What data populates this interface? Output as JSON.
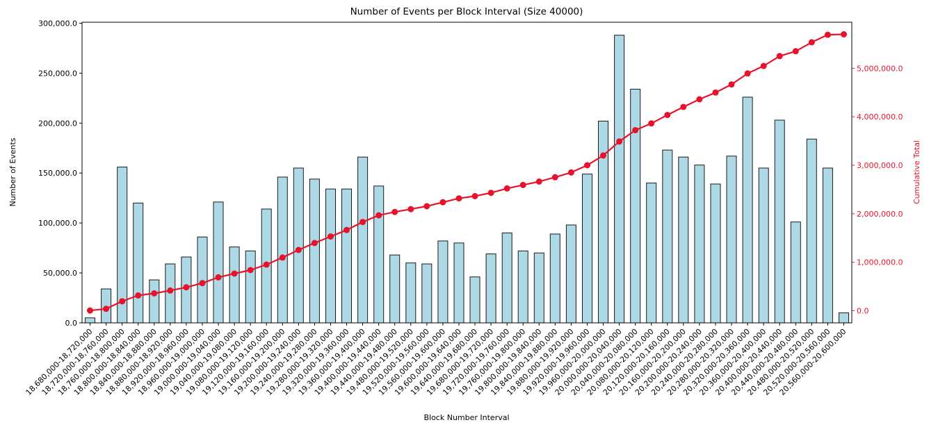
{
  "chart_data": {
    "type": "bar",
    "title": "Number of Events per Block Interval (Size 40000)",
    "xlabel": "Block Number Interval",
    "ylabel_left": "Number of Events",
    "ylabel_right": "Cumulative Total",
    "grid": false,
    "legend": "none",
    "categories": [
      "18,680,000-18,720,000",
      "18,720,000-18,760,000",
      "18,760,000-18,800,000",
      "18,800,000-18,840,000",
      "18,840,000-18,880,000",
      "18,880,000-18,920,000",
      "18,920,000-18,960,000",
      "18,960,000-19,000,000",
      "19,000,000-19,040,000",
      "19,040,000-19,080,000",
      "19,080,000-19,120,000",
      "19,120,000-19,160,000",
      "19,160,000-19,200,000",
      "19,200,000-19,240,000",
      "19,240,000-19,280,000",
      "19,280,000-19,320,000",
      "19,320,000-19,360,000",
      "19,360,000-19,400,000",
      "19,400,000-19,440,000",
      "19,440,000-19,480,000",
      "19,480,000-19,520,000",
      "19,520,000-19,560,000",
      "19,560,000-19,600,000",
      "19,600,000-19,640,000",
      "19,640,000-19,680,000",
      "19,680,000-19,720,000",
      "19,720,000-19,760,000",
      "19,760,000-19,800,000",
      "19,800,000-19,840,000",
      "19,840,000-19,880,000",
      "19,880,000-19,920,000",
      "19,920,000-19,960,000",
      "19,960,000-20,000,000",
      "20,000,000-20,040,000",
      "20,040,000-20,080,000",
      "20,080,000-20,120,000",
      "20,120,000-20,160,000",
      "20,160,000-20,200,000",
      "20,200,000-20,240,000",
      "20,240,000-20,280,000",
      "20,280,000-20,320,000",
      "20,320,000-20,360,000",
      "20,360,000-20,400,000",
      "20,400,000-20,440,000",
      "20,440,000-20,480,000",
      "20,480,000-20,520,000",
      "20,520,000-20,560,000",
      "20,560,000-20,600,000"
    ],
    "series": [
      {
        "name": "Number of Events",
        "type": "bar",
        "axis": "left",
        "color": "#add8e6",
        "edge_color": "#1a1a1a",
        "values": [
          5000,
          34000,
          156000,
          120000,
          43000,
          59000,
          66000,
          86000,
          121000,
          76000,
          72000,
          114000,
          146000,
          155000,
          144000,
          134000,
          134000,
          166000,
          137000,
          68000,
          60000,
          59000,
          82000,
          80000,
          46000,
          69000,
          90000,
          72000,
          70000,
          89000,
          98000,
          149000,
          202000,
          288000,
          234000,
          140000,
          173000,
          166000,
          158000,
          139000,
          167000,
          226000,
          155000,
          203000,
          101000,
          184000,
          155000,
          10000
        ]
      },
      {
        "name": "Cumulative Total",
        "type": "line",
        "axis": "right",
        "color": "#e8132b",
        "marker": "circle",
        "values": [
          5000,
          39000,
          195000,
          315000,
          358000,
          417000,
          483000,
          569000,
          690000,
          766000,
          838000,
          952000,
          1098000,
          1253000,
          1397000,
          1531000,
          1665000,
          1831000,
          1968000,
          2036000,
          2096000,
          2155000,
          2237000,
          2317000,
          2363000,
          2432000,
          2522000,
          2594000,
          2664000,
          2753000,
          2851000,
          3000000,
          3202000,
          3490000,
          3724000,
          3864000,
          4037000,
          4203000,
          4361000,
          4500000,
          4667000,
          4893000,
          5048000,
          5251000,
          5352000,
          5536000,
          5691000,
          5701000
        ]
      }
    ],
    "left_axis": {
      "ylim": [
        0,
        301000
      ],
      "tick_values": [
        0,
        50000,
        100000,
        150000,
        200000,
        250000,
        300000
      ],
      "tick_labels": [
        "0.0",
        "50,000.0",
        "100,000.0",
        "150,000.0",
        "200,000.0",
        "250,000.0",
        "300,000.0"
      ],
      "color": "#000000"
    },
    "right_axis": {
      "ylim": [
        -250000,
        5950000
      ],
      "tick_values": [
        0,
        1000000,
        2000000,
        3000000,
        4000000,
        5000000
      ],
      "tick_labels": [
        "0.0",
        "1,000,000.0",
        "2,000,000.0",
        "3,000,000.0",
        "4,000,000.0",
        "5,000,000.0"
      ],
      "color": "#e8132b"
    },
    "x_tick_rotation": 45
  }
}
